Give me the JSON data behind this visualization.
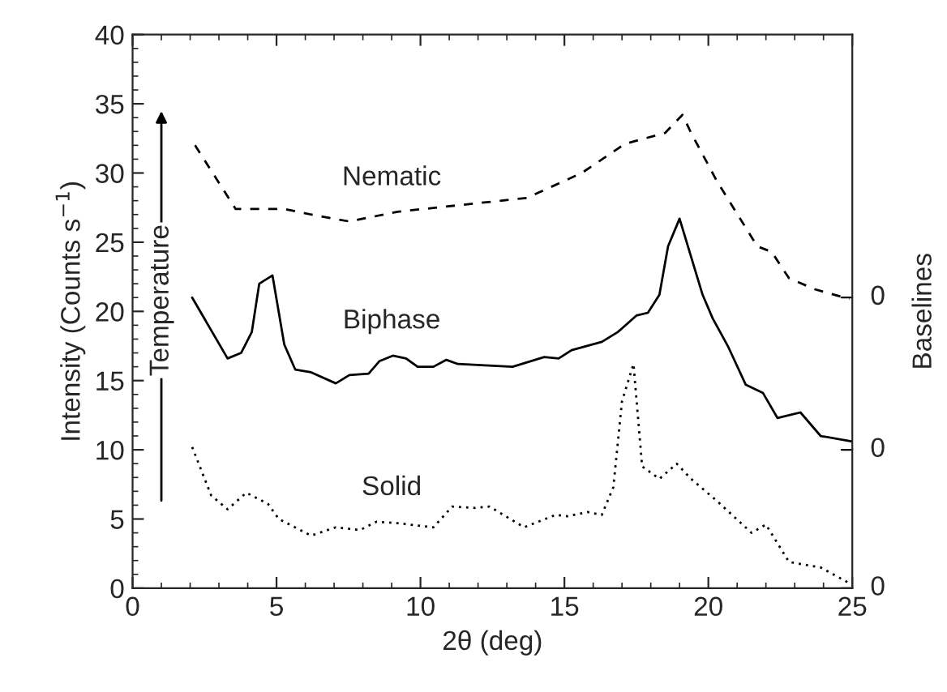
{
  "chart_data": {
    "type": "line",
    "xlabel": "2θ (deg)",
    "ylabel": "Intensity (Counts s$^{−1}$)",
    "y2label": "Baselines",
    "annotations": [
      "Temperature",
      "0",
      "0",
      "0"
    ],
    "xlim": [
      0,
      25
    ],
    "xticks": [
      0,
      5,
      10,
      15,
      20,
      25
    ],
    "ylim": [
      0,
      40
    ],
    "yticks": [
      0,
      5,
      10,
      15,
      20,
      25,
      30,
      35,
      40
    ],
    "grid": false,
    "legend": false,
    "marker": "none",
    "series": [
      {
        "name": "Nematic",
        "color": "#000000",
        "line_style": "dashed",
        "x": [
          2.17,
          3.58,
          5.27,
          6.2,
          7.53,
          9.2,
          11.9,
          13.7,
          15.6,
          17.1,
          18.5,
          19.1,
          19.4,
          20.3,
          21.7,
          22.2,
          22.8,
          23.7,
          24.9
        ],
        "values": [
          32.0,
          27.4,
          27.4,
          27.0,
          26.5,
          27.2,
          27.8,
          28.2,
          30.0,
          32.1,
          32.9,
          34.2,
          32.9,
          29.4,
          24.7,
          24.3,
          22.4,
          21.6,
          20.9
        ]
      },
      {
        "name": "Biphase",
        "color": "#000000",
        "line_style": "solid",
        "x": [
          2.07,
          3.3,
          3.77,
          4.14,
          4.4,
          4.86,
          5.27,
          5.65,
          6.2,
          7.06,
          7.53,
          8.2,
          8.57,
          9.04,
          9.5,
          9.9,
          10.45,
          10.9,
          11.3,
          13.2,
          14.3,
          14.8,
          15.25,
          16.3,
          16.85,
          17.5,
          17.9,
          18.3,
          18.6,
          19.0,
          19.8,
          20.15,
          20.7,
          21.3,
          21.9,
          22.4,
          23.2,
          23.9,
          25.0
        ],
        "values": [
          21.0,
          16.6,
          17.0,
          18.5,
          22.0,
          22.6,
          17.6,
          15.8,
          15.6,
          14.8,
          15.4,
          15.5,
          16.4,
          16.8,
          16.6,
          16.0,
          16.0,
          16.5,
          16.2,
          16.0,
          16.7,
          16.6,
          17.2,
          17.8,
          18.5,
          19.7,
          19.9,
          21.2,
          24.7,
          26.7,
          21.2,
          19.5,
          17.4,
          14.7,
          14.1,
          12.3,
          12.7,
          11.0,
          10.6
        ]
      },
      {
        "name": "Solid",
        "color": "#000000",
        "line_style": "dotted",
        "x": [
          2.07,
          2.73,
          3.3,
          3.95,
          4.7,
          5.08,
          6.2,
          7.06,
          7.9,
          8.47,
          9.2,
          10.45,
          11.1,
          11.9,
          12.4,
          13.6,
          14.7,
          15.1,
          15.8,
          16.3,
          16.7,
          17.0,
          17.4,
          17.7,
          18.3,
          18.9,
          19.4,
          20.3,
          21.5,
          22.0,
          22.8,
          23.9,
          24.95
        ],
        "values": [
          10.2,
          6.7,
          5.7,
          6.9,
          6.1,
          5.0,
          3.8,
          4.4,
          4.2,
          4.8,
          4.7,
          4.4,
          5.9,
          5.8,
          5.9,
          4.4,
          5.3,
          5.2,
          5.5,
          5.3,
          7.3,
          13.5,
          16.2,
          8.8,
          7.9,
          9.0,
          7.9,
          6.3,
          4.0,
          4.6,
          1.9,
          1.5,
          0.3
        ]
      }
    ]
  }
}
